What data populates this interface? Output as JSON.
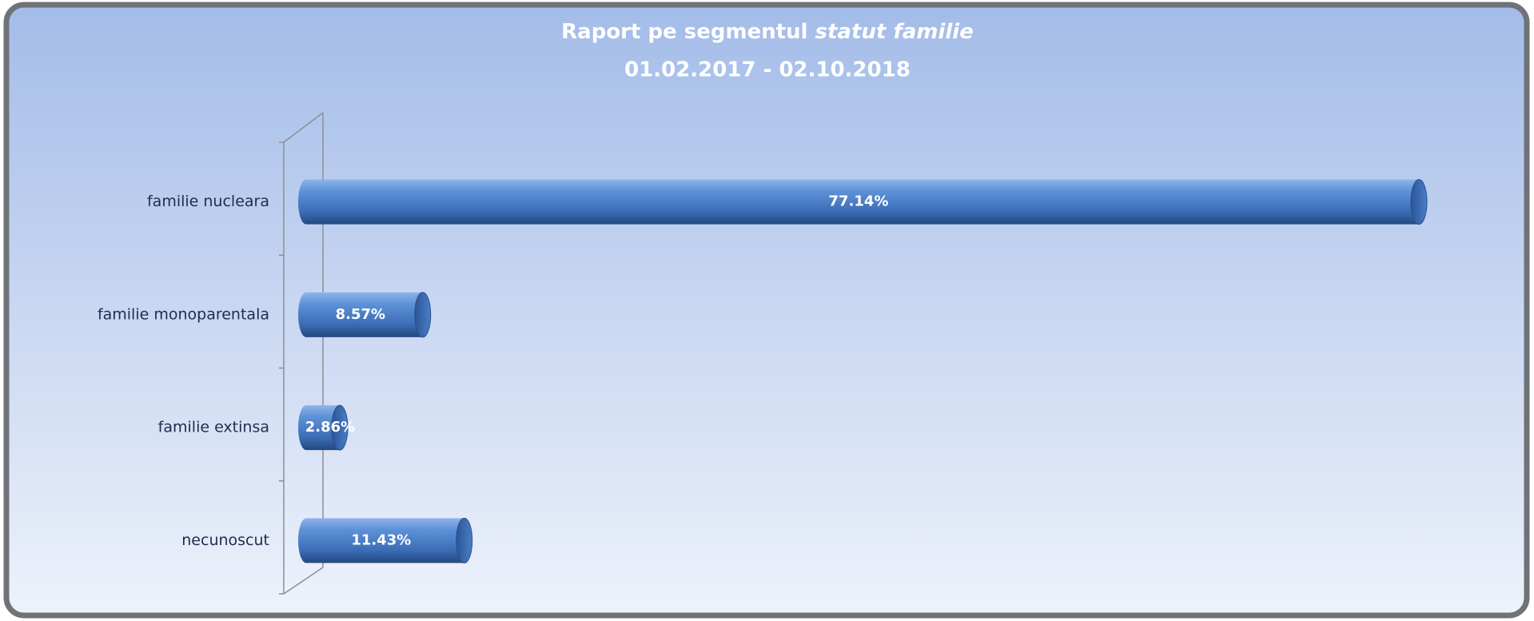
{
  "chart_data": {
    "type": "bar",
    "orientation": "horizontal",
    "title": "Raport pe segmentul",
    "title_emphasis": "statut familie",
    "subtitle": "01.02.2017 - 02.10.2018",
    "categories": [
      "familie nucleara",
      "familie monoparentala",
      "familie extinsa",
      "necunoscut"
    ],
    "values": [
      77.14,
      8.57,
      2.86,
      11.43
    ],
    "value_labels": [
      "77.14%",
      "8.57%",
      "2.86%",
      "11.43%"
    ],
    "color": "#4a7ec8",
    "xlim": [
      0,
      80
    ]
  }
}
